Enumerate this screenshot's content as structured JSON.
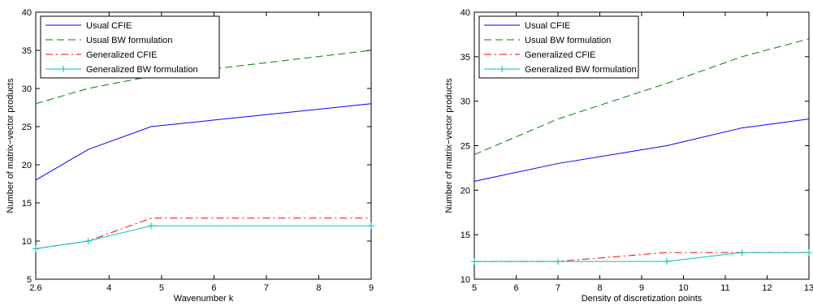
{
  "chart_data": [
    {
      "type": "line",
      "xlabel": "Wavenumber k",
      "ylabel": "Number of matrix−vector products",
      "xlim": [
        2.6,
        9
      ],
      "ylim": [
        5,
        40
      ],
      "xticks": [
        2.6,
        4,
        5,
        6,
        7,
        8,
        9
      ],
      "yticks": [
        5,
        10,
        15,
        20,
        25,
        30,
        35,
        40
      ],
      "grid": false,
      "legend_position": "top-left",
      "series": [
        {
          "name": "Usual CFIE",
          "style": "solid",
          "color": "#0000ff",
          "marker": "",
          "x": [
            2.6,
            3.6,
            4.8,
            9
          ],
          "y": [
            18,
            22,
            25,
            28
          ]
        },
        {
          "name": "Usual BW formulation",
          "style": "dashed",
          "color": "#008000",
          "marker": "",
          "x": [
            2.6,
            3.6,
            4.8,
            9
          ],
          "y": [
            28,
            30,
            31.6,
            35
          ]
        },
        {
          "name": "Generalized CFIE",
          "style": "dashdot",
          "color": "#ff0000",
          "marker": "",
          "x": [
            2.6,
            3.6,
            4.8,
            9
          ],
          "y": [
            9,
            10,
            13,
            13
          ]
        },
        {
          "name": "Generalized BW formulation",
          "style": "solid",
          "color": "#00bfbf",
          "marker": "+",
          "x": [
            2.6,
            3.6,
            4.8,
            9
          ],
          "y": [
            9,
            10,
            12,
            12
          ]
        }
      ]
    },
    {
      "type": "line",
      "xlabel": "Density of discretization points",
      "ylabel": "Number of matrix−vector products",
      "xlim": [
        5,
        13
      ],
      "ylim": [
        10,
        40
      ],
      "xticks": [
        5,
        6,
        7,
        8,
        9,
        10,
        11,
        12,
        13
      ],
      "yticks": [
        10,
        15,
        20,
        25,
        30,
        35,
        40
      ],
      "grid": false,
      "legend_position": "top-left",
      "series": [
        {
          "name": "Usual CFIE",
          "style": "solid",
          "color": "#0000ff",
          "marker": "",
          "x": [
            5,
            7,
            9.6,
            11.4,
            13
          ],
          "y": [
            21,
            23,
            25,
            27,
            28
          ]
        },
        {
          "name": "Usual BW formulation",
          "style": "dashed",
          "color": "#008000",
          "marker": "",
          "x": [
            5,
            7,
            9.6,
            11.4,
            13
          ],
          "y": [
            24,
            28,
            32,
            35,
            37
          ]
        },
        {
          "name": "Generalized CFIE",
          "style": "dashdot",
          "color": "#ff0000",
          "marker": "",
          "x": [
            5,
            7,
            9.6,
            11.4,
            13
          ],
          "y": [
            12,
            12,
            13,
            13,
            13
          ]
        },
        {
          "name": "Generalized BW formulation",
          "style": "solid",
          "color": "#00bfbf",
          "marker": "+",
          "x": [
            5,
            7,
            9.6,
            11.4,
            13
          ],
          "y": [
            12,
            12,
            12,
            13,
            13
          ]
        }
      ]
    }
  ]
}
